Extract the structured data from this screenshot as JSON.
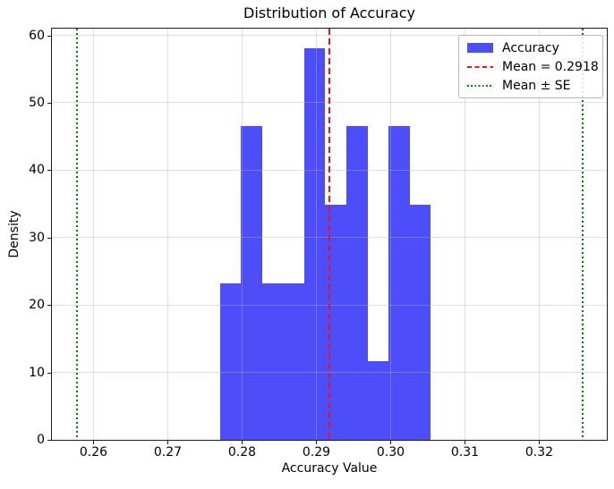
{
  "figure": {
    "background": "#ffffff"
  },
  "chart_data": {
    "type": "bar",
    "subtype": "histogram-density",
    "title": "Distribution of Accuracy",
    "xlabel": "Accuracy Value",
    "ylabel": "Density",
    "xlim": [
      0.2544,
      0.3291
    ],
    "ylim": [
      0,
      61
    ],
    "grid": true,
    "xtick_labels": [
      "0.26",
      "0.27",
      "0.28",
      "0.29",
      "0.30",
      "0.31",
      "0.32"
    ],
    "xtick_values": [
      0.26,
      0.27,
      0.28,
      0.29,
      0.3,
      0.31,
      0.32
    ],
    "ytick_labels": [
      "0",
      "10",
      "20",
      "30",
      "40",
      "50",
      "60"
    ],
    "ytick_values": [
      0,
      10,
      20,
      30,
      40,
      50,
      60
    ],
    "series": [
      {
        "name": "Accuracy",
        "kind": "histogram",
        "bar_color": "#4d4dfa",
        "bin_edges": [
          0.277,
          0.27984,
          0.28268,
          0.28552,
          0.28836,
          0.2912,
          0.29404,
          0.29688,
          0.29972,
          0.30256,
          0.3054
        ],
        "densities": [
          23.24,
          46.48,
          23.24,
          23.24,
          58.1,
          34.86,
          46.48,
          11.62,
          46.48,
          34.86
        ]
      }
    ],
    "mean": 0.2918,
    "mean_line": {
      "x": 0.2918,
      "color": "#f01212",
      "style": "dashed",
      "label": "Mean = 0.2918"
    },
    "se_lines": {
      "x": [
        0.2578,
        0.3258
      ],
      "color": "#008000",
      "style": "dotted",
      "label": "Mean ± SE"
    },
    "legend": {
      "position": "upper right",
      "entries": [
        {
          "handle": "patch",
          "color": "#4d4dfa",
          "label": "Accuracy"
        },
        {
          "handle": "dashed",
          "color": "#f01212",
          "label": "Mean = 0.2918"
        },
        {
          "handle": "dotted",
          "color": "#008000",
          "label": "Mean ± SE"
        }
      ]
    }
  }
}
